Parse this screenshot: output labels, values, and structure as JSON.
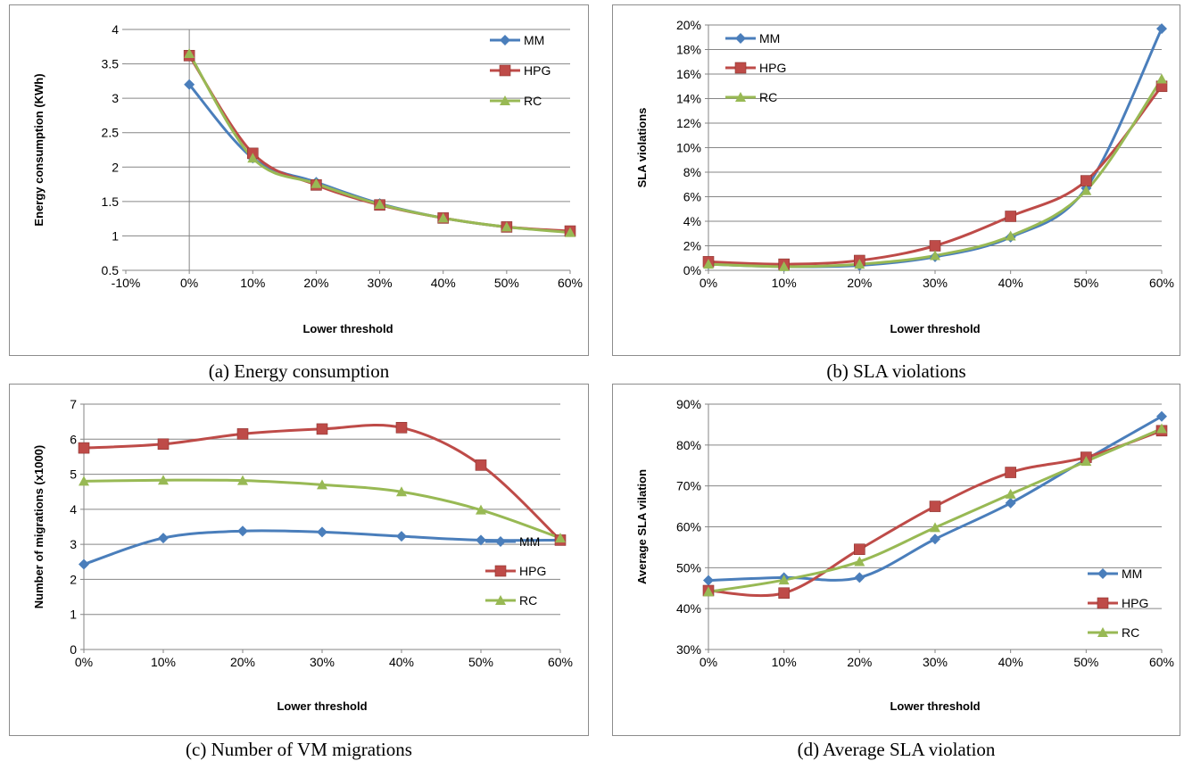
{
  "colors": {
    "MM": "#4a7ebb",
    "HPG": "#be4b48",
    "RC": "#98b954"
  },
  "chart_data": [
    {
      "id": "a",
      "type": "line",
      "caption": "(a) Energy consumption",
      "xlabel": "Lower threshold",
      "ylabel": "Energy consumption (KWh)",
      "x_tick_labels": [
        "-10%",
        "0%",
        "10%",
        "20%",
        "30%",
        "40%",
        "50%",
        "60%"
      ],
      "x_categories": [
        -10,
        0,
        10,
        20,
        30,
        40,
        50,
        60
      ],
      "y_ticks": [
        0.5,
        1,
        1.5,
        2,
        2.5,
        3,
        3.5,
        4
      ],
      "y_tick_labels": [
        "0.5",
        "1",
        "1.5",
        "2",
        "2.5",
        "3",
        "3.5",
        "4"
      ],
      "ylim": [
        0.5,
        4
      ],
      "legend_position": "top-right",
      "series": [
        {
          "name": "MM",
          "x": [
            0,
            10,
            20,
            30,
            40,
            50,
            60
          ],
          "values": [
            3.2,
            2.13,
            1.78,
            1.47,
            1.26,
            1.13,
            1.06
          ]
        },
        {
          "name": "HPG",
          "x": [
            0,
            10,
            20,
            30,
            40,
            50,
            60
          ],
          "values": [
            3.62,
            2.2,
            1.74,
            1.45,
            1.26,
            1.13,
            1.07
          ]
        },
        {
          "name": "RC",
          "x": [
            0,
            10,
            20,
            30,
            40,
            50,
            60
          ],
          "values": [
            3.65,
            2.13,
            1.76,
            1.46,
            1.26,
            1.13,
            1.05
          ]
        }
      ]
    },
    {
      "id": "b",
      "type": "line",
      "caption": "(b) SLA violations",
      "xlabel": "Lower threshold",
      "ylabel": "SLA violations",
      "x_tick_labels": [
        "0%",
        "10%",
        "20%",
        "30%",
        "40%",
        "50%",
        "60%"
      ],
      "x_categories": [
        0,
        10,
        20,
        30,
        40,
        50,
        60
      ],
      "y_ticks": [
        0,
        2,
        4,
        6,
        8,
        10,
        12,
        14,
        16,
        18,
        20
      ],
      "y_tick_labels": [
        "0%",
        "2%",
        "4%",
        "6%",
        "8%",
        "10%",
        "12%",
        "14%",
        "16%",
        "18%",
        "20%"
      ],
      "ylim": [
        0,
        20
      ],
      "legend_position": "top-left",
      "series": [
        {
          "name": "MM",
          "x": [
            0,
            10,
            20,
            30,
            40,
            50,
            60
          ],
          "values": [
            0.5,
            0.3,
            0.4,
            1.1,
            2.7,
            6.7,
            19.7
          ]
        },
        {
          "name": "HPG",
          "x": [
            0,
            10,
            20,
            30,
            40,
            50,
            60
          ],
          "values": [
            0.7,
            0.5,
            0.8,
            2.0,
            4.4,
            7.3,
            15.0
          ]
        },
        {
          "name": "RC",
          "x": [
            0,
            10,
            20,
            30,
            40,
            50,
            60
          ],
          "values": [
            0.5,
            0.3,
            0.5,
            1.2,
            2.8,
            6.5,
            15.6
          ]
        }
      ]
    },
    {
      "id": "c",
      "type": "line",
      "caption": "(c) Number of VM migrations",
      "xlabel": "Lower threshold",
      "ylabel": "Number of migrations (x1000)",
      "x_tick_labels": [
        "0%",
        "10%",
        "20%",
        "30%",
        "40%",
        "50%",
        "60%"
      ],
      "x_categories": [
        0,
        10,
        20,
        30,
        40,
        50,
        60
      ],
      "y_ticks": [
        0,
        1,
        2,
        3,
        4,
        5,
        6,
        7
      ],
      "y_tick_labels": [
        "0",
        "1",
        "2",
        "3",
        "4",
        "5",
        "6",
        "7"
      ],
      "ylim": [
        0,
        7
      ],
      "legend_position": "bottom-right",
      "series": [
        {
          "name": "MM",
          "x": [
            0,
            10,
            20,
            30,
            40,
            50,
            60
          ],
          "values": [
            2.43,
            3.18,
            3.38,
            3.35,
            3.23,
            3.12,
            3.12
          ]
        },
        {
          "name": "HPG",
          "x": [
            0,
            10,
            20,
            30,
            40,
            50,
            60
          ],
          "values": [
            5.75,
            5.86,
            6.15,
            6.29,
            6.33,
            5.26,
            3.12
          ]
        },
        {
          "name": "RC",
          "x": [
            0,
            10,
            20,
            30,
            40,
            50,
            60
          ],
          "values": [
            4.8,
            4.83,
            4.82,
            4.7,
            4.5,
            3.98,
            3.18
          ]
        }
      ]
    },
    {
      "id": "d",
      "type": "line",
      "caption": "(d) Average SLA violation",
      "xlabel": "Lower threshold",
      "ylabel": "Average SLA vilation",
      "x_tick_labels": [
        "0%",
        "10%",
        "20%",
        "30%",
        "40%",
        "50%",
        "60%"
      ],
      "x_categories": [
        0,
        10,
        20,
        30,
        40,
        50,
        60
      ],
      "y_ticks": [
        30,
        40,
        50,
        60,
        70,
        80,
        90
      ],
      "y_tick_labels": [
        "30%",
        "40%",
        "50%",
        "60%",
        "70%",
        "80%",
        "90%"
      ],
      "ylim": [
        30,
        90
      ],
      "legend_position": "right",
      "series": [
        {
          "name": "MM",
          "x": [
            0,
            10,
            20,
            30,
            40,
            50,
            60
          ],
          "values": [
            46.9,
            47.6,
            47.6,
            57.0,
            65.8,
            76.5,
            87.0
          ]
        },
        {
          "name": "HPG",
          "x": [
            0,
            10,
            20,
            30,
            40,
            50,
            60
          ],
          "values": [
            44.4,
            43.8,
            54.5,
            65.0,
            73.3,
            77.0,
            83.5
          ]
        },
        {
          "name": "RC",
          "x": [
            0,
            10,
            20,
            30,
            40,
            50,
            60
          ],
          "values": [
            44.1,
            47.0,
            51.5,
            59.8,
            68.0,
            76.0,
            84.0
          ]
        }
      ]
    }
  ]
}
